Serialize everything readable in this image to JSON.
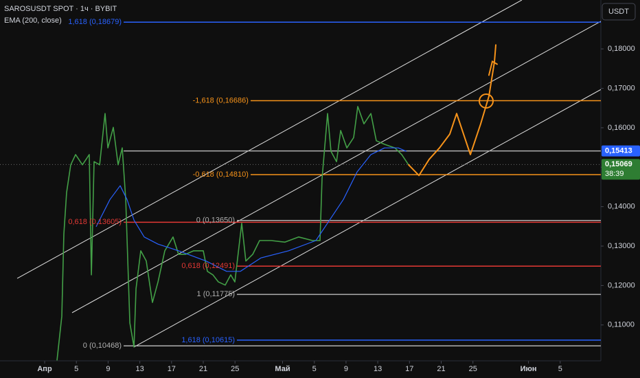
{
  "chart_data": {
    "type": "line",
    "currency": "USDT",
    "xlim": [
      -5.63,
      70.13
    ],
    "ylim": [
      0.1009,
      0.1924
    ],
    "xticks": [
      {
        "value": 0,
        "label": "Апр"
      },
      {
        "value": 4,
        "label": "5"
      },
      {
        "value": 8,
        "label": "9"
      },
      {
        "value": 12,
        "label": "13"
      },
      {
        "value": 16,
        "label": "17"
      },
      {
        "value": 20,
        "label": "21"
      },
      {
        "value": 24,
        "label": "25"
      },
      {
        "value": 30,
        "label": "Май"
      },
      {
        "value": 34,
        "label": "5"
      },
      {
        "value": 38,
        "label": "9"
      },
      {
        "value": 42,
        "label": "13"
      },
      {
        "value": 46,
        "label": "17"
      },
      {
        "value": 50,
        "label": "21"
      },
      {
        "value": 54,
        "label": "25"
      },
      {
        "value": 61,
        "label": "Июн"
      },
      {
        "value": 65,
        "label": "5"
      }
    ],
    "yticks": [
      {
        "value": 0.11,
        "label": "0,11000"
      },
      {
        "value": 0.12,
        "label": "0,12000"
      },
      {
        "value": 0.13,
        "label": "0,13000"
      },
      {
        "value": 0.14,
        "label": "0,14000"
      },
      {
        "value": 0.15,
        "label": "0,15000"
      },
      {
        "value": 0.16,
        "label": "0,16000"
      },
      {
        "value": 0.17,
        "label": "0,17000"
      },
      {
        "value": 0.18,
        "label": "0,18000"
      }
    ],
    "series": [
      {
        "name": "SAROSUSDT SPOT · 1ч · BYBIT",
        "color": "#43a047",
        "x": [
          1.56,
          2.16,
          2.42,
          2.77,
          3.29,
          3.9,
          4.76,
          5.63,
          5.89,
          6.23,
          6.93,
          7.62,
          7.97,
          8.66,
          9.26,
          9.78,
          10.22,
          10.74,
          11.26,
          11.52,
          12.12,
          12.81,
          13.59,
          14.29,
          15.15,
          16.19,
          16.88,
          17.75,
          18.79,
          20.0,
          20.52,
          21.21,
          21.9,
          22.77,
          23.46,
          23.98,
          24.85,
          25.37,
          26.23,
          27.1,
          28.57,
          30.3,
          32.03,
          33.77,
          34.72,
          34.98,
          35.67,
          36.1,
          36.8,
          37.32,
          38.1,
          38.96,
          39.48,
          40.26,
          41.13,
          41.82,
          42.86,
          44.16,
          45.02,
          45.89
        ],
        "values": [
          0.101,
          0.1122,
          0.1331,
          0.1436,
          0.1506,
          0.1532,
          0.1506,
          0.1532,
          0.1227,
          0.1514,
          0.1506,
          0.1636,
          0.1549,
          0.1601,
          0.1506,
          0.1549,
          0.1418,
          0.1105,
          0.1044,
          0.1192,
          0.1288,
          0.1262,
          0.1157,
          0.1209,
          0.1288,
          0.1323,
          0.1279,
          0.1279,
          0.1288,
          0.1288,
          0.1236,
          0.1227,
          0.1209,
          0.1201,
          0.1227,
          0.1209,
          0.1358,
          0.1262,
          0.1279,
          0.1314,
          0.1314,
          0.131,
          0.1323,
          0.1314,
          0.1314,
          0.1471,
          0.1636,
          0.154,
          0.1514,
          0.1593,
          0.1549,
          0.1575,
          0.1654,
          0.161,
          0.1636,
          0.1567,
          0.1558,
          0.1549,
          0.1532,
          0.1506
        ]
      },
      {
        "name": "EMA (200, close)",
        "color": "#2962ff",
        "x": [
          6.49,
          8.23,
          9.52,
          10.39,
          11.26,
          12.55,
          14.29,
          16.88,
          20.35,
          22.94,
          24.68,
          27.27,
          30.74,
          34.2,
          35.93,
          37.66,
          39.39,
          41.13,
          42.86,
          44.59,
          45.63
        ],
        "values": [
          0.1349,
          0.1418,
          0.1453,
          0.1418,
          0.1366,
          0.1323,
          0.1305,
          0.1288,
          0.1262,
          0.1236,
          0.1236,
          0.127,
          0.1288,
          0.1314,
          0.1366,
          0.1418,
          0.1488,
          0.1532,
          0.1549,
          0.1549,
          0.154
        ]
      }
    ],
    "forecast": {
      "color": "#f7931a",
      "x": [
        45.89,
        47.19,
        48.48,
        49.78,
        51.08,
        51.95,
        52.81,
        53.68,
        54.98,
        56.02,
        56.71,
        56.88
      ],
      "values": [
        0.1506,
        0.1479,
        0.152,
        0.1549,
        0.1584,
        0.1636,
        0.1584,
        0.1532,
        0.161,
        0.168,
        0.1767,
        0.181
      ]
    },
    "trendlines": [
      {
        "color": "#e0e0e0",
        "x": [
          -3.46,
          60.17
        ],
        "values": [
          0.1218,
          0.1924
        ]
      },
      {
        "color": "#e0e0e0",
        "x": [
          3.46,
          70.13
        ],
        "values": [
          0.1131,
          0.187
        ]
      },
      {
        "color": "#e0e0e0",
        "x": [
          11.26,
          70.13
        ],
        "values": [
          0.1044,
          0.1697
        ]
      }
    ],
    "levels": [
      {
        "value": 0.18679,
        "label": "1,618 (0,18679)",
        "color": "#2962ff",
        "start": 9.96
      },
      {
        "value": 0.16686,
        "label": "-1,618 (0,16686)",
        "color": "#f7931a",
        "start": 25.97
      },
      {
        "value": 0.15413,
        "label": null,
        "color": "#b0b0b0",
        "start": 9.96
      },
      {
        "value": 0.1481,
        "label": "-0,618 (0,14810)",
        "color": "#f7931a",
        "start": 25.97
      },
      {
        "value": 0.1365,
        "label": "0 (0,13650)",
        "color": "#b0b0b0",
        "start": 24.24
      },
      {
        "value": 0.13605,
        "label": "0,618 (0,13605)",
        "color": "#e53935",
        "start": 9.96
      },
      {
        "value": 0.12491,
        "label": "0,618 (0,12491)",
        "color": "#e53935",
        "start": 24.24
      },
      {
        "value": 0.11775,
        "label": "1 (0,11775)",
        "color": "#b0b0b0",
        "start": 24.24
      },
      {
        "value": 0.10615,
        "label": "1,618 (0,10615)",
        "color": "#2962ff",
        "start": 24.24
      },
      {
        "value": 0.10468,
        "label": "0 (0,10468)",
        "color": "#b0b0b0",
        "start": 9.96
      }
    ],
    "price_labels": [
      {
        "value": 0.15413,
        "label": "0,15413",
        "color": "#2962ff"
      },
      {
        "value": 0.15069,
        "label": "0,15069",
        "color": "#2e7d32",
        "countdown": "38:39"
      }
    ]
  }
}
